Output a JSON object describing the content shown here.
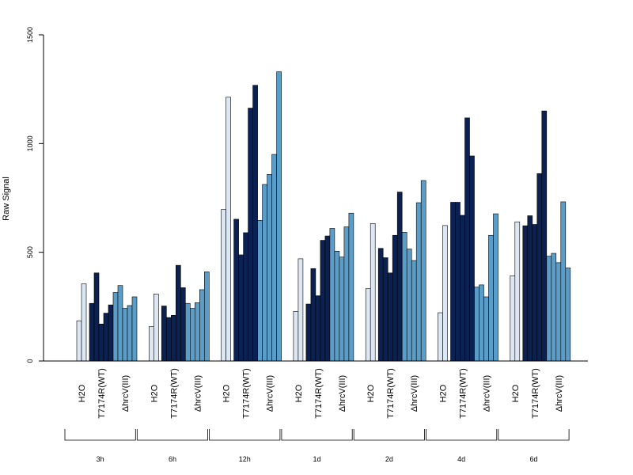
{
  "chart_data": {
    "type": "bar",
    "title": "",
    "xlabel": "",
    "ylabel": "Raw Signal",
    "ylim": [
      0,
      1500
    ],
    "yticks": [
      0,
      500,
      1000,
      1500
    ],
    "grid": false,
    "legend": "none",
    "time_points": [
      "3h",
      "6h",
      "12h",
      "1d",
      "2d",
      "4d",
      "6d"
    ],
    "treatments": [
      "H2O",
      "T7174R(WT)",
      "ΔhrcV(III)"
    ],
    "colors": {
      "H2O": "#dde7f3",
      "T7174R(WT)": "#0b2151",
      "ΔhrcV(III)": "#5b9dc9"
    },
    "groups": [
      {
        "time": "3h",
        "values": {
          "H2O": [
            185,
            355
          ],
          "T7174R(WT)": [
            265,
            405,
            170,
            220,
            258
          ],
          "ΔhrcV(III)": [
            315,
            347,
            242,
            255,
            295
          ]
        }
      },
      {
        "time": "6h",
        "values": {
          "H2O": [
            158,
            308
          ],
          "T7174R(WT)": [
            253,
            200,
            210,
            440,
            337
          ],
          "ΔhrcV(III)": [
            265,
            242,
            268,
            328,
            410
          ]
        }
      },
      {
        "time": "12h",
        "values": {
          "H2O": [
            697,
            1213
          ],
          "T7174R(WT)": [
            652,
            488,
            590,
            1163,
            1268
          ],
          "ΔhrcV(III)": [
            647,
            812,
            858,
            950,
            1330
          ]
        }
      },
      {
        "time": "1d",
        "values": {
          "H2O": [
            228,
            470
          ],
          "T7174R(WT)": [
            262,
            425,
            300,
            555,
            575
          ],
          "ΔhrcV(III)": [
            610,
            505,
            478,
            617,
            680
          ]
        }
      },
      {
        "time": "2d",
        "values": {
          "H2O": [
            333,
            632
          ],
          "T7174R(WT)": [
            518,
            475,
            405,
            578,
            777
          ],
          "ΔhrcV(III)": [
            592,
            515,
            462,
            728,
            830
          ]
        }
      },
      {
        "time": "4d",
        "values": {
          "H2O": [
            222,
            623
          ],
          "T7174R(WT)": [
            730,
            730,
            670,
            1118,
            943
          ],
          "ΔhrcV(III)": [
            340,
            350,
            295,
            578,
            677
          ]
        }
      },
      {
        "time": "6d",
        "values": {
          "H2O": [
            392,
            640
          ],
          "T7174R(WT)": [
            622,
            668,
            628,
            862,
            1150
          ],
          "ΔhrcV(III)": [
            482,
            495,
            452,
            732,
            428
          ]
        }
      }
    ]
  }
}
